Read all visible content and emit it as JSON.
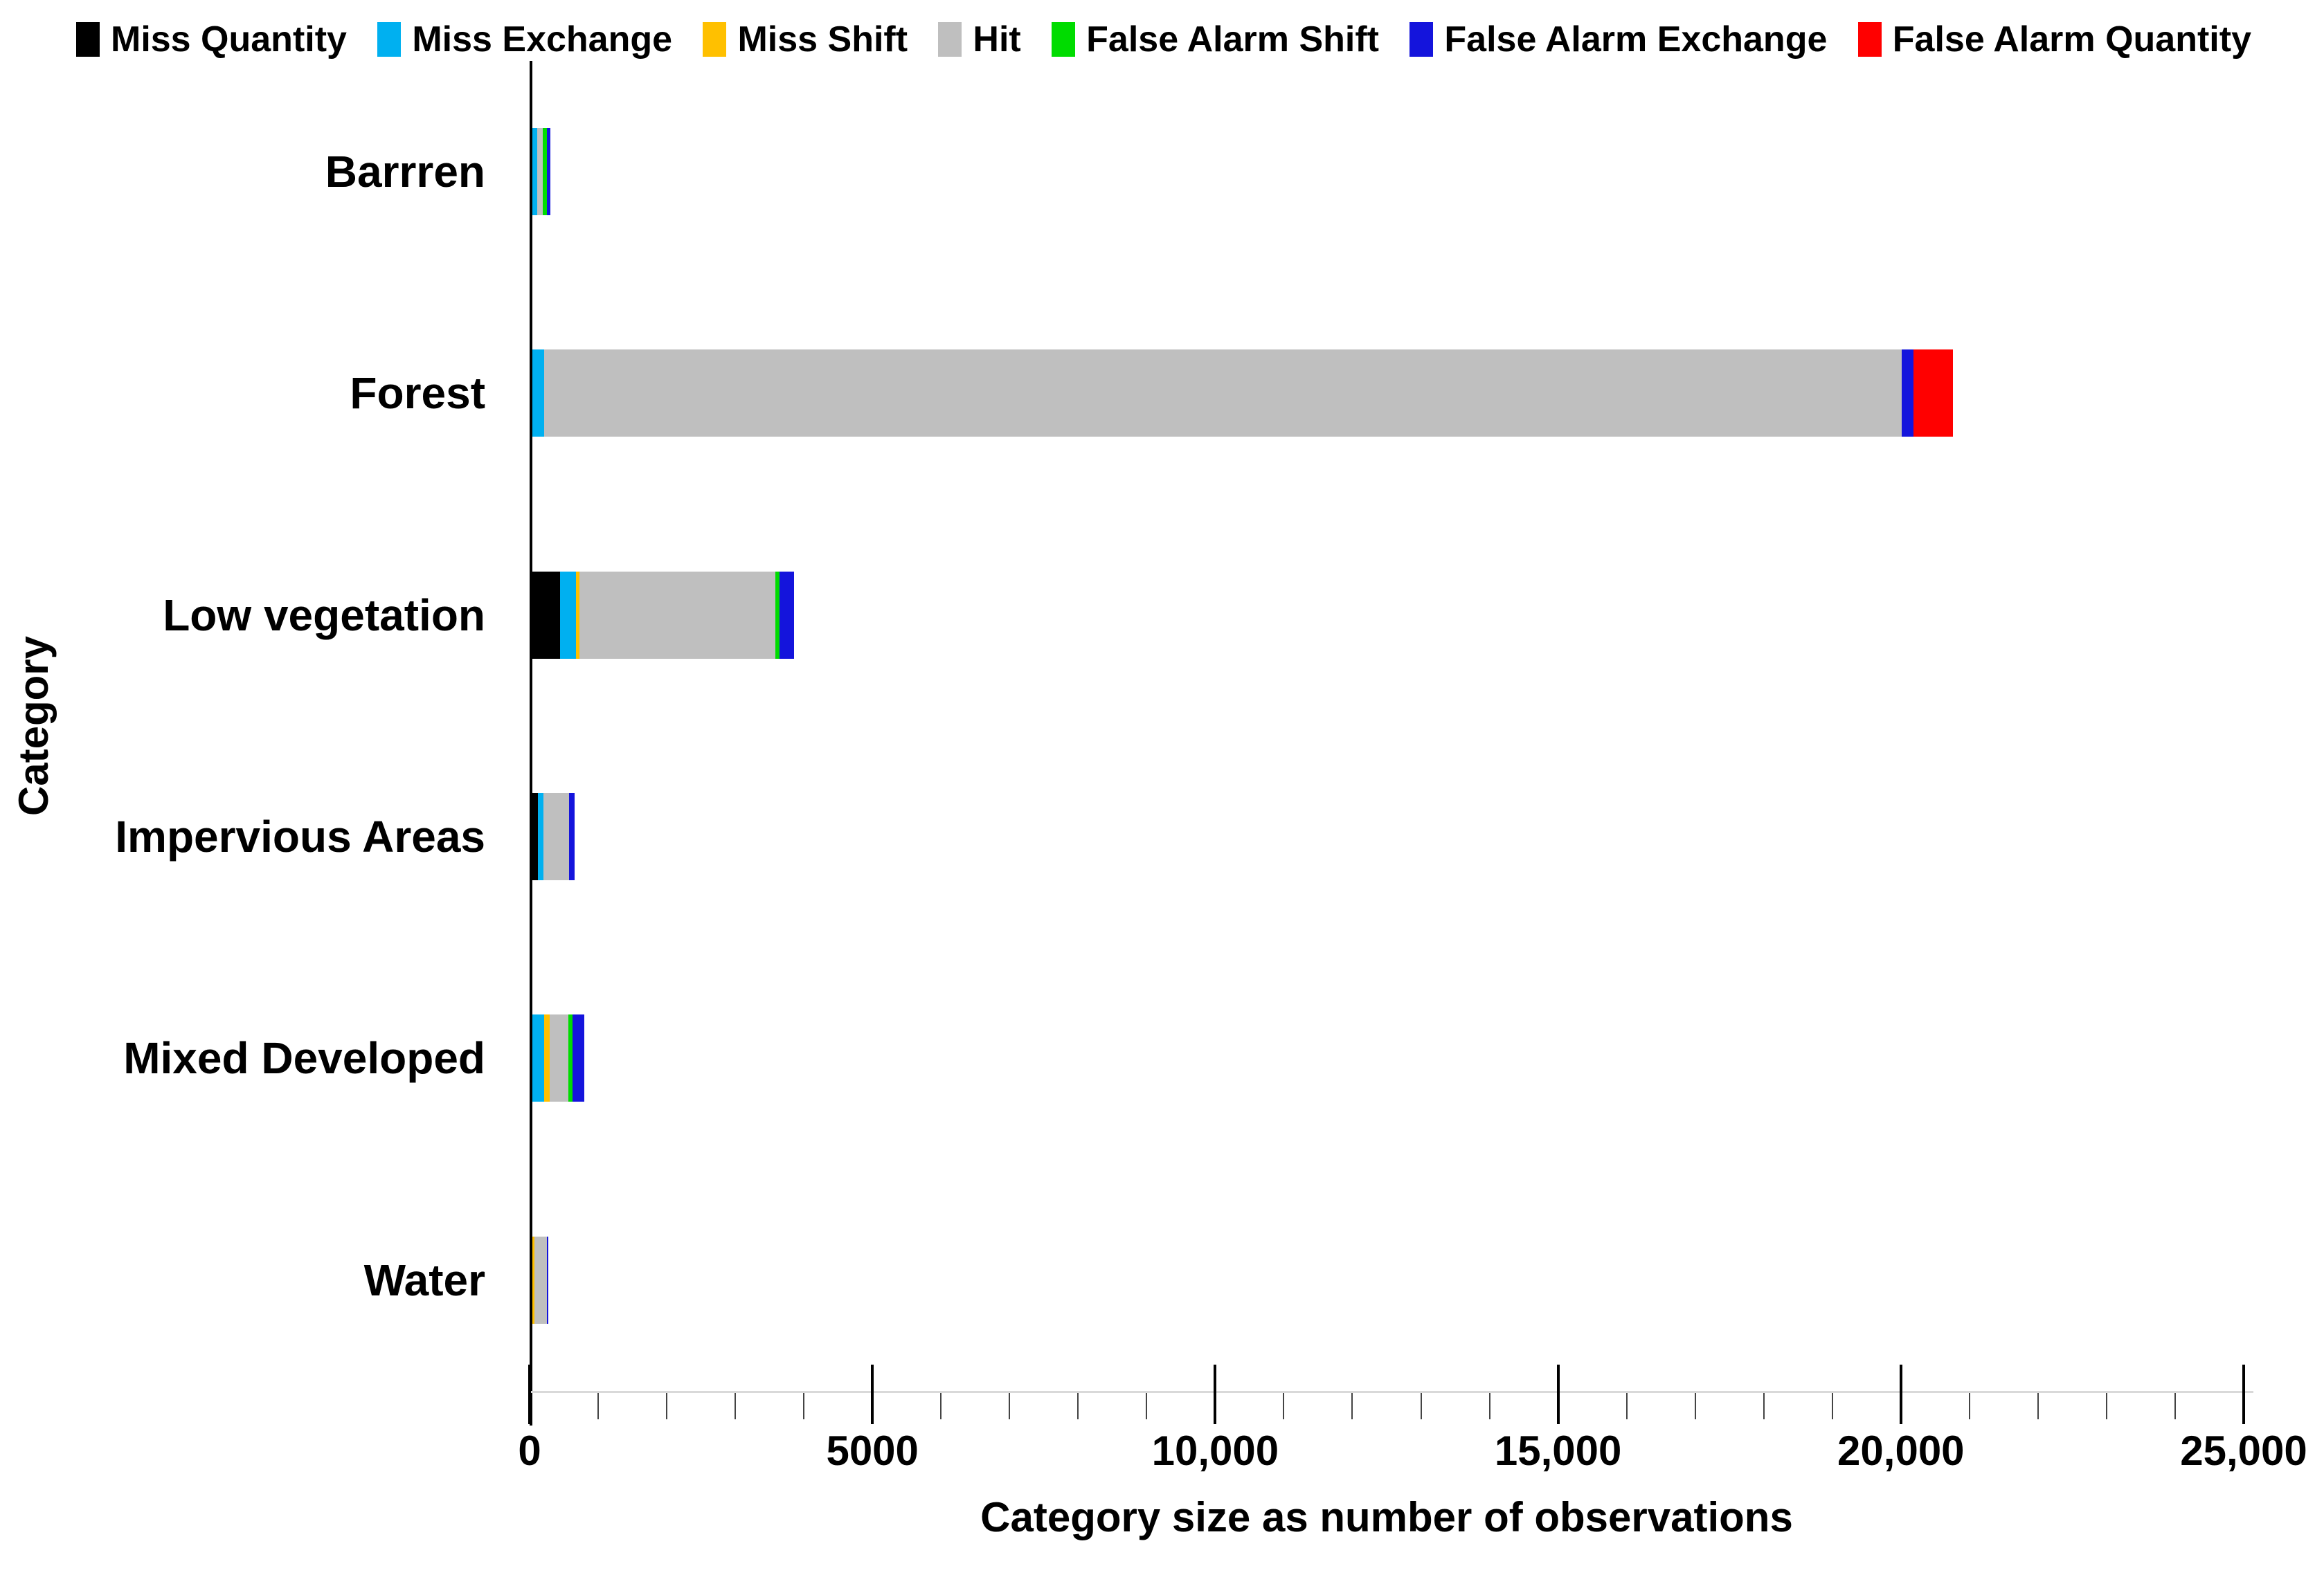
{
  "chart_data": {
    "type": "bar",
    "orientation": "horizontal",
    "stacked": true,
    "title": "",
    "xlabel": "Category size as number of observations",
    "ylabel": "Category",
    "xlim": [
      0,
      25000
    ],
    "x_tick_values": [
      0,
      5000,
      10000,
      15000,
      20000,
      25000
    ],
    "x_tick_labels": [
      "0",
      "5000",
      "10,000",
      "15,000",
      "20,000",
      "25,000"
    ],
    "minor_tick_step": 1000,
    "grid": false,
    "legend_position": "top",
    "categories": [
      "Barrren",
      "Forest",
      "Low vegetation",
      "Impervious Areas",
      "Mixed Developed",
      "Water"
    ],
    "series": [
      {
        "name": "Miss Quantity",
        "color": "#000000",
        "values": [
          0,
          0,
          405,
          85,
          0,
          0
        ]
      },
      {
        "name": "Miss Exchange",
        "color": "#00B0F0",
        "values": [
          75,
          170,
          235,
          80,
          170,
          0
        ]
      },
      {
        "name": "Miss Shift",
        "color": "#FFC000",
        "values": [
          0,
          0,
          45,
          0,
          80,
          30
        ]
      },
      {
        "name": "Hit",
        "color": "#BFBFBF",
        "values": [
          80,
          19800,
          2855,
          370,
          280,
          185
        ]
      },
      {
        "name": "False Alarm Shift",
        "color": "#00DC00",
        "values": [
          55,
          0,
          65,
          0,
          55,
          0
        ]
      },
      {
        "name": "False Alarm Exchange",
        "color": "#1414DC",
        "values": [
          50,
          170,
          210,
          85,
          170,
          20
        ]
      },
      {
        "name": "False Alarm Quantity",
        "color": "#FF0000",
        "values": [
          0,
          575,
          0,
          0,
          0,
          0
        ]
      }
    ]
  },
  "axes": {
    "x_title": "Category size as number of observations",
    "y_title": "Category"
  }
}
